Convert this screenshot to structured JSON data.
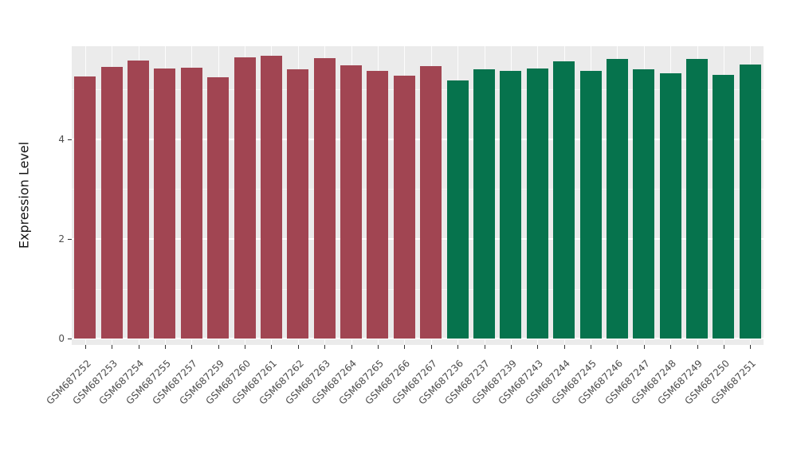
{
  "chart_data": {
    "type": "bar",
    "title": "",
    "xlabel": "",
    "ylabel": "Expression Level",
    "ylim": [
      0,
      5.87
    ],
    "yticks": [
      0,
      2,
      4
    ],
    "yticks_minor": [
      1,
      3,
      5
    ],
    "grid": "white-on-gray-panel",
    "legend": "none",
    "panel_background": "#EBEBEB",
    "figure_background": "#FFFFFF",
    "axis_text_color": "#4D4D4D",
    "group_colors": {
      "red": "#A14552",
      "green": "#06734D"
    },
    "bars": [
      {
        "label": "GSM687252",
        "value": 5.27,
        "group": "red"
      },
      {
        "label": "GSM687253",
        "value": 5.46,
        "group": "red"
      },
      {
        "label": "GSM687254",
        "value": 5.59,
        "group": "red"
      },
      {
        "label": "GSM687255",
        "value": 5.43,
        "group": "red"
      },
      {
        "label": "GSM687257",
        "value": 5.44,
        "group": "red"
      },
      {
        "label": "GSM687259",
        "value": 5.24,
        "group": "red"
      },
      {
        "label": "GSM687260",
        "value": 5.64,
        "group": "red"
      },
      {
        "label": "GSM687261",
        "value": 5.68,
        "group": "red"
      },
      {
        "label": "GSM687262",
        "value": 5.4,
        "group": "red"
      },
      {
        "label": "GSM687263",
        "value": 5.63,
        "group": "red"
      },
      {
        "label": "GSM687264",
        "value": 5.48,
        "group": "red"
      },
      {
        "label": "GSM687265",
        "value": 5.37,
        "group": "red"
      },
      {
        "label": "GSM687266",
        "value": 5.28,
        "group": "red"
      },
      {
        "label": "GSM687267",
        "value": 5.47,
        "group": "red"
      },
      {
        "label": "GSM687236",
        "value": 5.19,
        "group": "green"
      },
      {
        "label": "GSM687237",
        "value": 5.4,
        "group": "green"
      },
      {
        "label": "GSM687239",
        "value": 5.38,
        "group": "green"
      },
      {
        "label": "GSM687243",
        "value": 5.42,
        "group": "green"
      },
      {
        "label": "GSM687244",
        "value": 5.56,
        "group": "green"
      },
      {
        "label": "GSM687245",
        "value": 5.38,
        "group": "green"
      },
      {
        "label": "GSM687246",
        "value": 5.61,
        "group": "green"
      },
      {
        "label": "GSM687247",
        "value": 5.41,
        "group": "green"
      },
      {
        "label": "GSM687248",
        "value": 5.33,
        "group": "green"
      },
      {
        "label": "GSM687249",
        "value": 5.62,
        "group": "green"
      },
      {
        "label": "GSM687250",
        "value": 5.29,
        "group": "green"
      },
      {
        "label": "GSM687251",
        "value": 5.5,
        "group": "green"
      }
    ]
  }
}
